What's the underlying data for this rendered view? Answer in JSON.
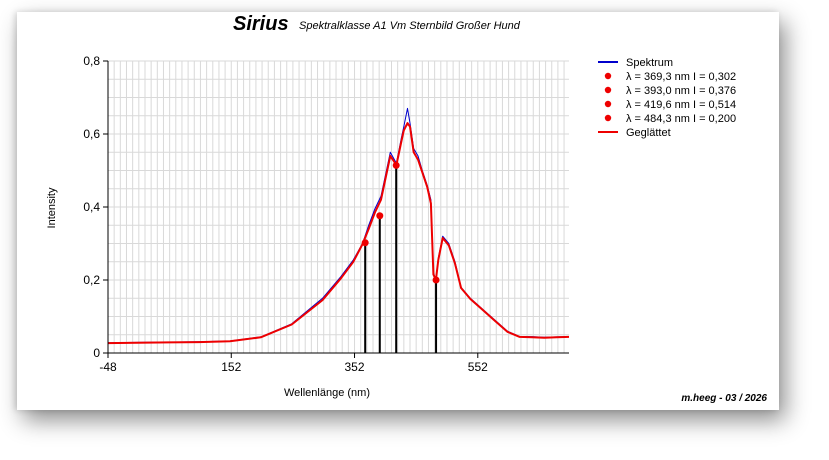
{
  "chart_data": {
    "type": "line",
    "title": "Sirius",
    "subtitle": "Spektralklasse A1 Vm  Sternbild Großer Hund",
    "xlabel": "Wellenlänge (nm)",
    "ylabel": "Intensity",
    "xlim": [
      -48,
      700
    ],
    "ylim": [
      0,
      0.8
    ],
    "x_ticks": [
      "-48",
      "152",
      "352",
      "552"
    ],
    "y_ticks": [
      "0",
      "0,2",
      "0,4",
      "0,6",
      "0,8"
    ],
    "grid": true,
    "legend_position": "top-right",
    "series": [
      {
        "name": "Spektrum",
        "color": "#0000cc",
        "x": [
          -48,
          0,
          50,
          100,
          150,
          200,
          250,
          300,
          330,
          350,
          365,
          375,
          385,
          395,
          405,
          410,
          420,
          428,
          432,
          438,
          442,
          448,
          455,
          462,
          470,
          476,
          480,
          484,
          488,
          495,
          505,
          515,
          525,
          540,
          560,
          580,
          600,
          620,
          640,
          660,
          680,
          700
        ],
        "values": [
          0.028,
          0.029,
          0.03,
          0.031,
          0.033,
          0.044,
          0.08,
          0.15,
          0.21,
          0.255,
          0.3,
          0.35,
          0.395,
          0.43,
          0.51,
          0.55,
          0.52,
          0.59,
          0.62,
          0.67,
          0.63,
          0.56,
          0.54,
          0.5,
          0.46,
          0.42,
          0.22,
          0.2,
          0.26,
          0.32,
          0.3,
          0.25,
          0.18,
          0.15,
          0.12,
          0.09,
          0.06,
          0.045,
          0.045,
          0.043,
          0.044,
          0.045
        ]
      },
      {
        "name": "Geglättet",
        "color": "#ee0000",
        "x": [
          -48,
          0,
          50,
          100,
          150,
          200,
          250,
          300,
          330,
          350,
          365,
          375,
          385,
          395,
          405,
          410,
          420,
          428,
          432,
          438,
          442,
          448,
          455,
          462,
          470,
          476,
          480,
          484,
          488,
          495,
          505,
          515,
          525,
          540,
          560,
          580,
          600,
          620,
          640,
          660,
          680,
          700
        ],
        "values": [
          0.027,
          0.028,
          0.029,
          0.03,
          0.032,
          0.043,
          0.078,
          0.145,
          0.205,
          0.25,
          0.298,
          0.34,
          0.385,
          0.42,
          0.5,
          0.54,
          0.515,
          0.58,
          0.61,
          0.63,
          0.62,
          0.55,
          0.53,
          0.495,
          0.455,
          0.41,
          0.215,
          0.2,
          0.255,
          0.315,
          0.295,
          0.245,
          0.178,
          0.148,
          0.118,
          0.088,
          0.058,
          0.044,
          0.043,
          0.042,
          0.043,
          0.044
        ]
      }
    ],
    "markers": [
      {
        "label": "λ = 369,3 nm   I = 0,302",
        "x": 369.3,
        "y": 0.302,
        "color": "#ee0000"
      },
      {
        "label": "λ = 393,0 nm   I = 0,376",
        "x": 393.0,
        "y": 0.376,
        "color": "#ee0000"
      },
      {
        "label": "λ = 419,6 nm   I = 0,514",
        "x": 419.6,
        "y": 0.514,
        "color": "#ee0000"
      },
      {
        "label": "λ = 484,3 nm   I = 0,200",
        "x": 484.3,
        "y": 0.2,
        "color": "#ee0000"
      }
    ],
    "credit": "m.heeg - 03 / 2026"
  }
}
